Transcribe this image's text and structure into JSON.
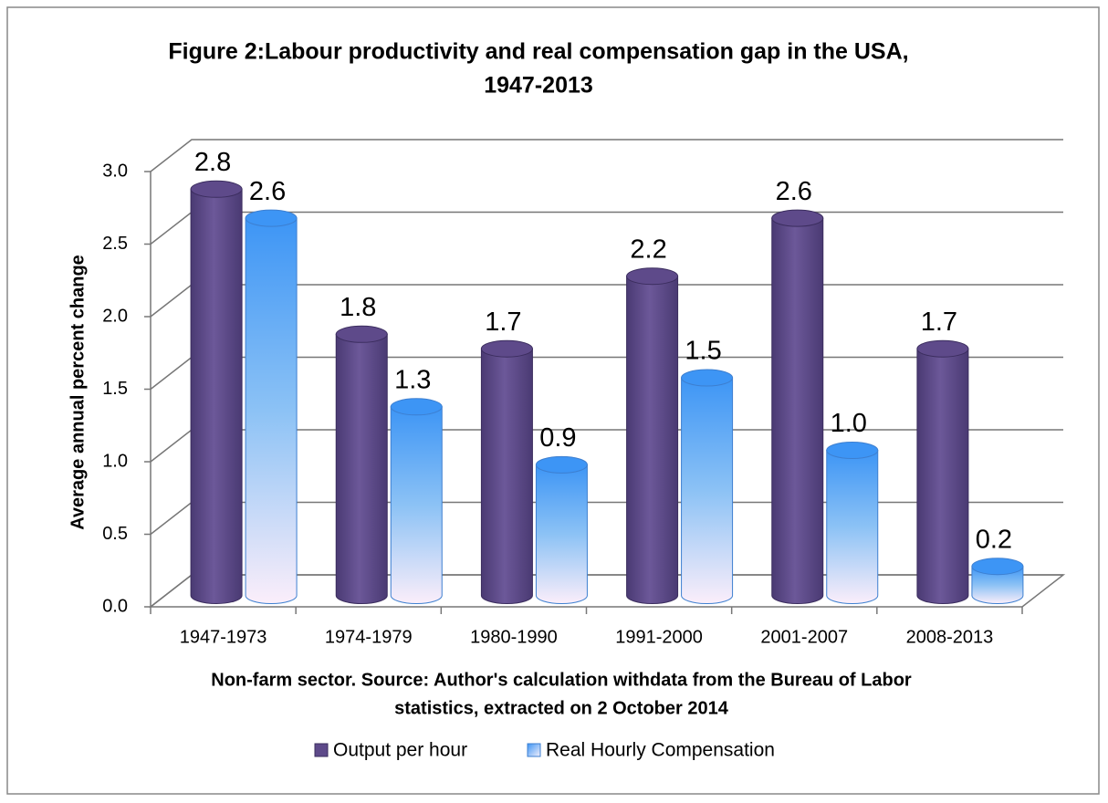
{
  "chart_data": {
    "type": "bar3d",
    "title": [
      "Figure 2:Labour productivity and real compensation gap in the USA,",
      "1947-2013"
    ],
    "ylabel": "Average annual percent change",
    "xlabel": [
      "Non-farm sector. Source: Author's calculation withdata from the Bureau of Labor",
      "statistics, extracted on 2 October 2014"
    ],
    "categories": [
      "1947-1973",
      "1974-1979",
      "1980-1990",
      "1991-2000",
      "2001-2007",
      "2008-2013"
    ],
    "series": [
      {
        "name": "Output per hour",
        "color": "#5e4a8a",
        "values": [
          2.8,
          1.8,
          1.7,
          2.2,
          2.6,
          1.7
        ],
        "value_labels": [
          "2.8",
          "1.8",
          "1.7",
          "2.2",
          "2.6",
          "1.7"
        ]
      },
      {
        "name": "Real Hourly Compensation",
        "color": "#3d95f5",
        "values": [
          2.6,
          1.3,
          0.9,
          1.5,
          1.0,
          0.2
        ],
        "value_labels": [
          "2.6",
          "1.3",
          "0.9",
          "1.5",
          "1.0",
          "0.2"
        ]
      }
    ],
    "ylim": [
      0,
      3
    ],
    "yticks": [
      {
        "value": 0,
        "label": "0.0"
      },
      {
        "value": 0.5,
        "label": "0.5"
      },
      {
        "value": 1,
        "label": "1.0"
      },
      {
        "value": 1.5,
        "label": "1.5"
      },
      {
        "value": 2,
        "label": "2.0"
      },
      {
        "value": 2.5,
        "label": "2.5"
      },
      {
        "value": 3,
        "label": "3.0"
      }
    ],
    "grid": true,
    "legend": "bottom"
  }
}
